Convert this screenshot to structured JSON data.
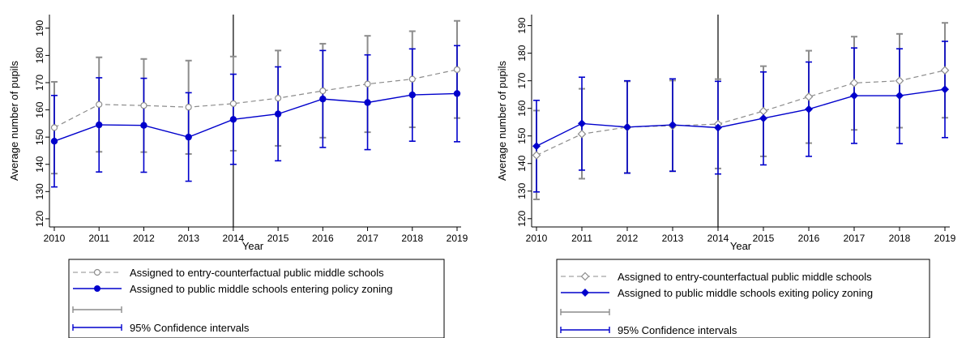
{
  "colors": {
    "counterfactual": "#8c8c8c",
    "treated": "#0000cc",
    "axis": "#000000"
  },
  "chart_data": [
    {
      "type": "line",
      "xlabel": "Year",
      "ylabel": "Average number of pupils",
      "x": [
        2010,
        2011,
        2012,
        2013,
        2014,
        2015,
        2016,
        2017,
        2018,
        2019
      ],
      "xlim": [
        2010,
        2019
      ],
      "ylim": [
        117,
        195
      ],
      "yticks": [
        120,
        130,
        140,
        150,
        160,
        170,
        180,
        190
      ],
      "vline": 2014,
      "grid": false,
      "legend_position": "bottom",
      "series": [
        {
          "name": "Assigned to entry-counterfactual public middle schools",
          "style": "dashed",
          "marker": "hollow-circle",
          "values": [
            153.5,
            162,
            161.6,
            161,
            162.3,
            164.3,
            167,
            169.5,
            171.3,
            174.8
          ],
          "ci_low": [
            136.6,
            144.6,
            144.5,
            143.8,
            145,
            146.8,
            149.8,
            151.8,
            153.6,
            157
          ],
          "ci_high": [
            170.3,
            179.3,
            178.7,
            178.1,
            179.6,
            181.8,
            184.3,
            187.2,
            188.9,
            192.7
          ]
        },
        {
          "name": "Assigned to public middle schools entering policy zoning",
          "style": "solid",
          "marker": "filled-circle",
          "values": [
            148.5,
            154.5,
            154.3,
            150,
            156.5,
            158.5,
            164,
            162.7,
            165.5,
            166
          ],
          "ci_low": [
            131.7,
            137.2,
            137.1,
            133.8,
            140,
            141.3,
            146.2,
            145.4,
            148.5,
            148.3
          ],
          "ci_high": [
            165.3,
            171.8,
            171.6,
            166.3,
            173.1,
            175.8,
            181.8,
            180.2,
            182.4,
            183.6
          ]
        }
      ],
      "legend": {
        "entries": [
          "Assigned to entry-counterfactual public middle schools",
          "Assigned to public middle schools entering policy zoning",
          "",
          "95% Confidence intervals"
        ]
      }
    },
    {
      "type": "line",
      "xlabel": "Year",
      "ylabel": "Average number of pupils",
      "x": [
        2010,
        2011,
        2012,
        2013,
        2014,
        2015,
        2016,
        2017,
        2018,
        2019
      ],
      "xlim": [
        2010,
        2019
      ],
      "ylim": [
        117,
        194
      ],
      "yticks": [
        120,
        130,
        140,
        150,
        160,
        170,
        180,
        190
      ],
      "vline": 2014,
      "grid": false,
      "legend_position": "bottom",
      "series": [
        {
          "name": "Assigned to entry-counterfactual public middle schools",
          "style": "dashed",
          "marker": "hollow-diamond",
          "values": [
            143,
            150.7,
            153.2,
            153.7,
            154.3,
            159,
            164.2,
            169.2,
            170,
            173.8
          ],
          "ci_low": [
            127,
            134.5,
            136.6,
            137.2,
            138.2,
            142.6,
            147.4,
            152.2,
            153,
            156.6
          ],
          "ci_high": [
            159.2,
            167.1,
            169.8,
            170.1,
            170.6,
            175.3,
            180.9,
            186,
            187,
            191
          ]
        },
        {
          "name": "Assigned to public middle schools exiting policy zoning",
          "style": "solid",
          "marker": "filled-diamond",
          "values": [
            146.3,
            154.5,
            153.2,
            154,
            153,
            156.4,
            159.7,
            164.6,
            164.6,
            166.9
          ],
          "ci_low": [
            129.7,
            137.6,
            136.5,
            137.2,
            136.2,
            139.5,
            142.6,
            147.3,
            147.2,
            149.4
          ],
          "ci_high": [
            162.9,
            171.3,
            170,
            170.7,
            169.8,
            173.2,
            176.8,
            181.9,
            181.6,
            184.3
          ]
        }
      ],
      "legend": {
        "entries": [
          "Assigned to entry-counterfactual public middle schools",
          "Assigned to public middle schools exiting policy zoning",
          "",
          "95% Confidence intervals"
        ]
      }
    }
  ]
}
